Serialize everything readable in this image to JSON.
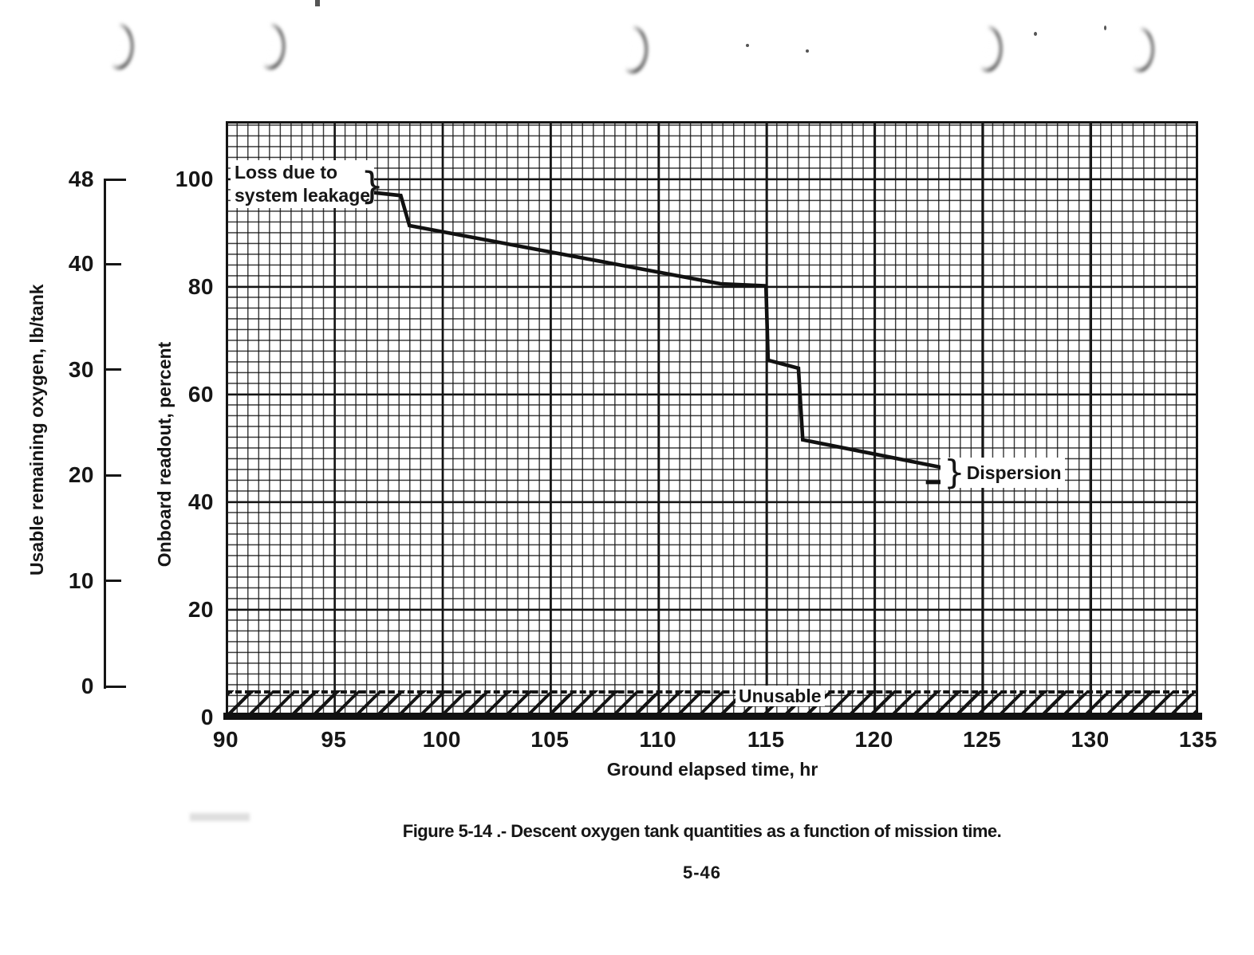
{
  "document": {
    "caption": "Figure 5-14 .- Descent oxygen tank quantities as a function of mission time.",
    "page_number": "5-46"
  },
  "colors": {
    "ink": "#161616",
    "paper": "#ffffff"
  },
  "chart_data": {
    "type": "line",
    "title": "Descent oxygen tank quantities as a function of mission time",
    "xlabel": "Ground elapsed time, hr",
    "ylabel": "Onboard readout, percent",
    "ylabel_secondary": "Usable remaining oxygen, lb/tank",
    "xlim": [
      90,
      135
    ],
    "x_ticks": [
      90,
      95,
      100,
      105,
      110,
      115,
      120,
      125,
      130,
      135
    ],
    "y_ticks_percent": [
      0,
      20,
      40,
      60,
      80,
      100
    ],
    "y_ticks_lb": [
      0,
      10,
      20,
      30,
      40,
      48
    ],
    "lb_axis_note": "48 lb/tank corresponds to 100 percent; 0 lb/tank sits at about 5.8 percent (unusable residual)",
    "grid": "graph-paper grid: minor 0.5 hr x 2 percent, major 5 hr x 20 percent",
    "legend_position": "none",
    "series": [
      {
        "name": "Onboard readout",
        "points": [
          [
            96.7,
            97.6
          ],
          [
            98.1,
            97.0
          ],
          [
            98.5,
            91.4
          ],
          [
            112.9,
            80.6
          ],
          [
            115.0,
            80.2
          ],
          [
            115.1,
            66.4
          ],
          [
            116.5,
            64.9
          ],
          [
            116.7,
            51.6
          ],
          [
            123.2,
            46.4
          ]
        ]
      }
    ],
    "dispersion_dash": {
      "x1": 122.4,
      "x2": 123.3,
      "y": 43.7
    },
    "unusable_band": {
      "from_percent": 0,
      "to_percent": 4.6,
      "style": "diagonal hatching"
    },
    "annotations": {
      "loss_line1": "Loss due to",
      "loss_line2": "system leakage",
      "brace_glyph": "}",
      "dispersion": "Dispersion",
      "unusable": "Unusable"
    }
  },
  "artifacts": {
    "punch_hole_shadows": 5
  }
}
